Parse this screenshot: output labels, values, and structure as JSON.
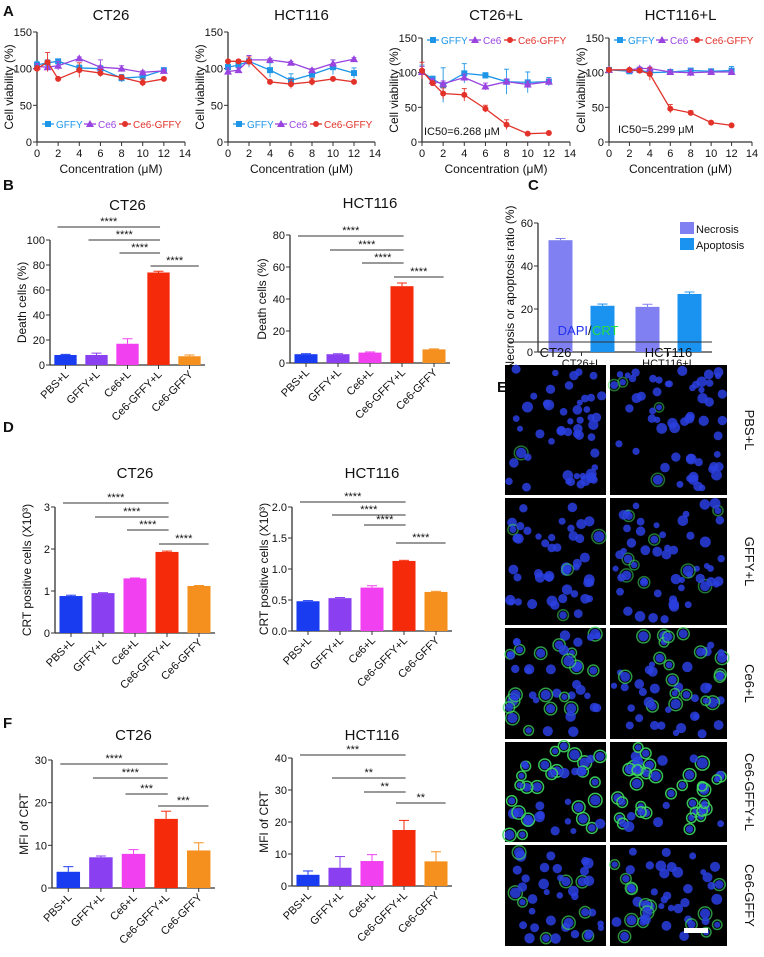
{
  "panel_letters": [
    "A",
    "B",
    "C",
    "D",
    "E",
    "F"
  ],
  "colors": {
    "GFFY": "#1e96e8",
    "Ce6": "#9a44e0",
    "Ce6-GFFY": "#e2322a",
    "PBS+L": "#1a3cf0",
    "GFFY+L": "#8a40f0",
    "Ce6+L": "#f040f0",
    "Ce6-GFFY+L": "#f42a0a",
    "Ce6-GFFY_bar": "#f5901e",
    "Necrosis": "#8080f2",
    "Apoptosis": "#1a92f0",
    "DAPI": "#2233ee",
    "CRT": "#22dd44"
  },
  "chart_data": [
    {
      "id": "A1",
      "type": "line",
      "title": "CT26",
      "xlabel": "Concentration (μM)",
      "ylabel": "Cell viability (%)",
      "xlim": [
        0,
        14
      ],
      "ylim": [
        0,
        150
      ],
      "xticks": [
        "0",
        "2",
        "4",
        "6",
        "8",
        "10",
        "12",
        "14"
      ],
      "yticks": [
        "0",
        "50",
        "100",
        "150"
      ],
      "legend": "bottom",
      "series": [
        {
          "name": "GFFY",
          "marker": "square",
          "x": [
            0,
            1,
            2,
            4,
            6,
            8,
            10,
            12
          ],
          "y": [
            105,
            108,
            110,
            101,
            100,
            87,
            89,
            98
          ],
          "err": [
            5,
            4,
            3,
            4,
            4,
            5,
            3,
            2
          ]
        },
        {
          "name": "Ce6",
          "marker": "triangle",
          "x": [
            0,
            1,
            2,
            4,
            6,
            8,
            10,
            12
          ],
          "y": [
            103,
            102,
            104,
            114,
            102,
            100,
            95,
            97
          ],
          "err": [
            4,
            5,
            6,
            2,
            10,
            4,
            2,
            2
          ]
        },
        {
          "name": "Ce6-GFFY",
          "marker": "circle",
          "x": [
            0,
            1,
            2,
            4,
            6,
            8,
            10,
            12
          ],
          "y": [
            100,
            109,
            86,
            98,
            94,
            88,
            81,
            86
          ],
          "err": [
            4,
            13,
            2,
            10,
            5,
            3,
            5,
            2
          ]
        }
      ]
    },
    {
      "id": "A2",
      "type": "line",
      "title": "HCT116",
      "xlabel": "Concentration (μM)",
      "ylabel": "Cell viability (%)",
      "xlim": [
        0,
        14
      ],
      "ylim": [
        0,
        150
      ],
      "xticks": [
        "0",
        "2",
        "4",
        "6",
        "8",
        "10",
        "12",
        "14"
      ],
      "yticks": [
        "0",
        "50",
        "100",
        "150"
      ],
      "legend": "bottom",
      "series": [
        {
          "name": "GFFY",
          "marker": "square",
          "x": [
            0,
            1,
            2,
            4,
            6,
            8,
            10,
            12
          ],
          "y": [
            102,
            105,
            110,
            98,
            84,
            92,
            102,
            94
          ],
          "err": [
            4,
            3,
            8,
            10,
            9,
            5,
            10,
            7
          ]
        },
        {
          "name": "Ce6",
          "marker": "triangle",
          "x": [
            0,
            1,
            2,
            4,
            6,
            8,
            10,
            12
          ],
          "y": [
            96,
            98,
            112,
            112,
            108,
            98,
            107,
            113
          ],
          "err": [
            5,
            3,
            6,
            2,
            2,
            2,
            5,
            2
          ]
        },
        {
          "name": "Ce6-GFFY",
          "marker": "circle",
          "x": [
            0,
            1,
            2,
            4,
            6,
            8,
            10,
            12
          ],
          "y": [
            110,
            110,
            110,
            82,
            79,
            82,
            86,
            82
          ],
          "err": [
            2,
            2,
            6,
            2,
            6,
            5,
            2,
            2
          ]
        }
      ]
    },
    {
      "id": "A3",
      "type": "line",
      "title": "CT26+L",
      "xlabel": "Concentration (μM)",
      "ylabel": "Cell viability (%)",
      "xlim": [
        0,
        14
      ],
      "ylim": [
        0,
        150
      ],
      "xticks": [
        "0",
        "2",
        "4",
        "6",
        "8",
        "10",
        "12",
        "14"
      ],
      "yticks": [
        "0",
        "50",
        "100",
        "150"
      ],
      "legend": "top",
      "annotation": "IC50=6.268 μM",
      "series": [
        {
          "name": "GFFY",
          "marker": "square",
          "x": [
            0,
            1,
            2,
            4,
            6,
            8,
            10,
            12
          ],
          "y": [
            101,
            91,
            82,
            99,
            96,
            87,
            86,
            87
          ],
          "err": [
            10,
            4,
            25,
            14,
            4,
            18,
            15,
            6
          ]
        },
        {
          "name": "Ce6",
          "marker": "triangle",
          "x": [
            0,
            1,
            2,
            4,
            6,
            8,
            10,
            12
          ],
          "y": [
            101,
            88,
            84,
            93,
            80,
            87,
            83,
            87
          ],
          "err": [
            8,
            3,
            4,
            5,
            5,
            4,
            5,
            4
          ]
        },
        {
          "name": "Ce6-GFFY",
          "marker": "circle",
          "x": [
            0,
            1,
            2,
            4,
            6,
            8,
            10,
            12
          ],
          "y": [
            103,
            85,
            70,
            68,
            48,
            25,
            12,
            13
          ],
          "err": [
            12,
            3,
            8,
            9,
            5,
            7,
            1,
            1
          ]
        }
      ]
    },
    {
      "id": "A4",
      "type": "line",
      "title": "HCT116+L",
      "xlabel": "Concentration (μM)",
      "ylabel": "Cell viability (%)",
      "xlim": [
        0,
        14
      ],
      "ylim": [
        0,
        150
      ],
      "xticks": [
        "0",
        "2",
        "4",
        "6",
        "8",
        "10",
        "12",
        "14"
      ],
      "yticks": [
        "0",
        "50",
        "100",
        "150"
      ],
      "legend": "top",
      "annotation": "IC50=5.299 μM",
      "series": [
        {
          "name": "GFFY",
          "marker": "square",
          "x": [
            0,
            2,
            3,
            4,
            6,
            8,
            10,
            12
          ],
          "y": [
            104,
            102,
            104,
            100,
            101,
            103,
            102,
            103
          ],
          "err": [
            3,
            2,
            2,
            2,
            2,
            2,
            3,
            6
          ]
        },
        {
          "name": "Ce6",
          "marker": "triangle",
          "x": [
            0,
            2,
            3,
            4,
            6,
            8,
            10,
            12
          ],
          "y": [
            104,
            104,
            106,
            106,
            101,
            100,
            101,
            101
          ],
          "err": [
            2,
            2,
            2,
            2,
            2,
            5,
            2,
            3
          ]
        },
        {
          "name": "Ce6-GFFY",
          "marker": "circle",
          "x": [
            0,
            2,
            3,
            4,
            6,
            8,
            10,
            12
          ],
          "y": [
            104,
            104,
            103,
            98,
            48,
            42,
            28,
            24
          ],
          "err": [
            3,
            2,
            2,
            9,
            6,
            3,
            1,
            1
          ]
        }
      ]
    },
    {
      "id": "B1",
      "type": "bar",
      "title": "CT26",
      "ylabel": "Death cells (%)",
      "ylim": [
        0,
        100
      ],
      "yticks": [
        "0",
        "20",
        "40",
        "60",
        "80",
        "100"
      ],
      "categories": [
        "PBS+L",
        "GFFY+L",
        "Ce6+L",
        "Ce6-GFFY+L",
        "Ce6-GFFY"
      ],
      "values": [
        8,
        8,
        17,
        74,
        7
      ],
      "err": [
        0.5,
        1.5,
        4,
        1,
        1
      ],
      "significance": [
        {
          "from": 0,
          "to": 3,
          "label": "****"
        },
        {
          "from": 1,
          "to": 3,
          "label": "****"
        },
        {
          "from": 2,
          "to": 3,
          "label": "****"
        },
        {
          "from": 3,
          "to": 4,
          "label": "****"
        }
      ]
    },
    {
      "id": "B2",
      "type": "bar",
      "title": "HCT116",
      "ylabel": "Death cells (%)",
      "ylim": [
        0,
        80
      ],
      "yticks": [
        "0",
        "20",
        "40",
        "60",
        "80"
      ],
      "categories": [
        "PBS+L",
        "GFFY+L",
        "Ce6+L",
        "Ce6-GFFY+L",
        "Ce6-GFFY"
      ],
      "values": [
        5.5,
        5.5,
        6.5,
        48,
        8.5
      ],
      "err": [
        0.3,
        0.3,
        0.4,
        2,
        0.3
      ],
      "significance": [
        {
          "from": 0,
          "to": 3,
          "label": "****"
        },
        {
          "from": 1,
          "to": 3,
          "label": "****"
        },
        {
          "from": 2,
          "to": 3,
          "label": "****"
        },
        {
          "from": 3,
          "to": 4,
          "label": "****"
        }
      ]
    },
    {
      "id": "C",
      "type": "grouped-bar",
      "ylabel": "Necrosis or apoptosis ratio (%)",
      "ylim": [
        0,
        60
      ],
      "yticks": [
        "0",
        "20",
        "40",
        "60"
      ],
      "legend": "top-right",
      "categories": [
        "CT26+L",
        "HCT116+L"
      ],
      "series": [
        {
          "name": "Necrosis",
          "values": [
            52,
            21
          ],
          "err": [
            0.8,
            1.2
          ]
        },
        {
          "name": "Apoptosis",
          "values": [
            21.5,
            27
          ],
          "err": [
            0.8,
            0.9
          ]
        }
      ]
    },
    {
      "id": "D1",
      "type": "bar",
      "title": "CT26",
      "ylabel": "CRT positive cells (X10³)",
      "ylim": [
        0,
        3
      ],
      "yticks": [
        "0",
        "1",
        "2",
        "3"
      ],
      "categories": [
        "PBS+L",
        "GFFY+L",
        "Ce6+L",
        "Ce6-GFFY+L",
        "Ce6-GFFY"
      ],
      "values": [
        0.88,
        0.95,
        1.3,
        1.93,
        1.12
      ],
      "err": [
        0.02,
        0.01,
        0.01,
        0.02,
        0.01
      ],
      "significance": [
        {
          "from": 0,
          "to": 3,
          "label": "****"
        },
        {
          "from": 1,
          "to": 3,
          "label": "****"
        },
        {
          "from": 2,
          "to": 3,
          "label": "****"
        },
        {
          "from": 3,
          "to": 4,
          "label": "****"
        }
      ]
    },
    {
      "id": "D2",
      "type": "bar",
      "title": "HCT116",
      "ylabel": "CRT positive cells (X10³)",
      "ylim": [
        0,
        2
      ],
      "yticks": [
        "0.0",
        "0.5",
        "1.0",
        "1.5",
        "2.0"
      ],
      "categories": [
        "PBS+L",
        "GFFY+L",
        "Ce6+L",
        "Ce6-GFFY+L",
        "Ce6-GFFY"
      ],
      "values": [
        0.48,
        0.53,
        0.7,
        1.13,
        0.63
      ],
      "err": [
        0.01,
        0.01,
        0.03,
        0.01,
        0.01
      ],
      "significance": [
        {
          "from": 0,
          "to": 3,
          "label": "****"
        },
        {
          "from": 1,
          "to": 3,
          "label": "****"
        },
        {
          "from": 2,
          "to": 3,
          "label": "****"
        },
        {
          "from": 3,
          "to": 4,
          "label": "****"
        }
      ]
    },
    {
      "id": "F1",
      "type": "bar",
      "title": "CT26",
      "ylabel": "MFI of CRT",
      "ylim": [
        0,
        30
      ],
      "yticks": [
        "0",
        "10",
        "20",
        "30"
      ],
      "categories": [
        "PBS+L",
        "GFFY+L",
        "Ce6+L",
        "Ce6-GFFY+L",
        "Ce6-GFFY"
      ],
      "values": [
        3.8,
        7.2,
        8.0,
        16.2,
        8.8
      ],
      "err": [
        1.2,
        0.3,
        1.0,
        1.8,
        1.8
      ],
      "significance": [
        {
          "from": 0,
          "to": 3,
          "label": "****"
        },
        {
          "from": 1,
          "to": 3,
          "label": "****"
        },
        {
          "from": 2,
          "to": 3,
          "label": "***"
        },
        {
          "from": 3,
          "to": 4,
          "label": "***"
        }
      ]
    },
    {
      "id": "F2",
      "type": "bar",
      "title": "HCT116",
      "ylabel": "MFI of CRT",
      "ylim": [
        0,
        40
      ],
      "yticks": [
        "0",
        "10",
        "20",
        "30",
        "40"
      ],
      "categories": [
        "PBS+L",
        "GFFY+L",
        "Ce6+L",
        "Ce6-GFFY+L",
        "Ce6-GFFY"
      ],
      "values": [
        3.5,
        5.7,
        7.8,
        17.5,
        7.7
      ],
      "err": [
        1.2,
        3.5,
        2.0,
        3.0,
        3.0
      ],
      "significance": [
        {
          "from": 0,
          "to": 3,
          "label": "***"
        },
        {
          "from": 1,
          "to": 3,
          "label": "**"
        },
        {
          "from": 2,
          "to": 3,
          "label": "**"
        },
        {
          "from": 3,
          "to": 4,
          "label": "**"
        }
      ]
    }
  ],
  "micrographs": {
    "stain_label_1": "DAPI",
    "stain_sep": "/",
    "stain_label_2": "CRT",
    "columns": [
      "CT26",
      "HCT116"
    ],
    "rows": [
      "PBS+L",
      "GFFY+L",
      "Ce6+L",
      "Ce6-GFFY+L",
      "Ce6-GFFY"
    ],
    "crt_level": [
      0.05,
      0.1,
      0.45,
      0.8,
      0.35
    ]
  }
}
